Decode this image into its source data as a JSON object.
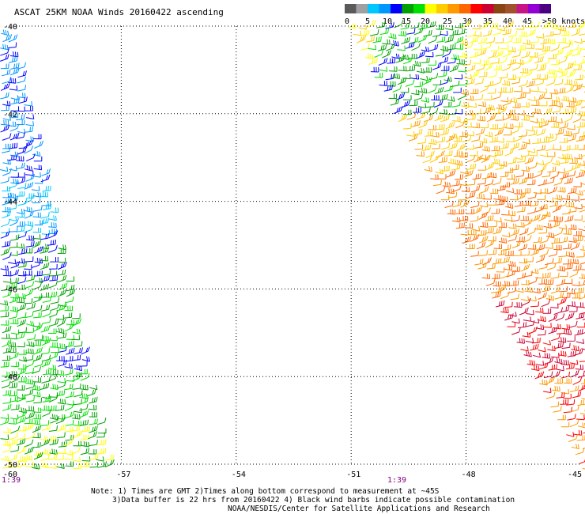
{
  "title": "ASCAT 25KM NOAA Winds 20160422 ascending",
  "colorbar": {
    "colors": [
      "#5a5a5a",
      "#a0a0a0",
      "#00c8ff",
      "#0096ff",
      "#0000ff",
      "#00a000",
      "#00e000",
      "#ffff00",
      "#ffcc00",
      "#ff9900",
      "#ff6600",
      "#ff0000",
      "#cc0033",
      "#8b4513",
      "#a0522d",
      "#c71585",
      "#9400d3",
      "#4b0082"
    ],
    "labels": [
      "0",
      "5",
      "10",
      "15",
      "20",
      "25",
      "30",
      "35",
      "40",
      "45",
      ">50 knots"
    ]
  },
  "map": {
    "lat_labels": [
      "-40",
      "-42",
      "-44",
      "-46",
      "-48",
      "-50"
    ],
    "lon_labels": [
      "-57",
      "-54",
      "-51",
      "-48",
      "-45"
    ],
    "corner_lon_label": "-60",
    "pass_times": [
      "1:39",
      "1:39"
    ],
    "swaths": [
      {
        "name": "west-swath",
        "colors": [
          "#0000ff",
          "#0096ff",
          "#00c8ff",
          "#00a000",
          "#00e000",
          "#ffff00"
        ]
      },
      {
        "name": "east-swath",
        "colors": [
          "#ffcc00",
          "#ff9900",
          "#ff6600",
          "#ff0000",
          "#cc0033",
          "#8b4513",
          "#00a000",
          "#0000ff"
        ]
      }
    ]
  },
  "notes": {
    "line1": "Note: 1) Times are GMT 2)Times along bottom correspond to measurement at ~45S",
    "line2": "3)Data buffer is 22 hrs from 20160422 4) Black wind barbs indicate possible contamination",
    "line3": "NOAA/NESDIS/Center for Satellite Applications and Research"
  }
}
